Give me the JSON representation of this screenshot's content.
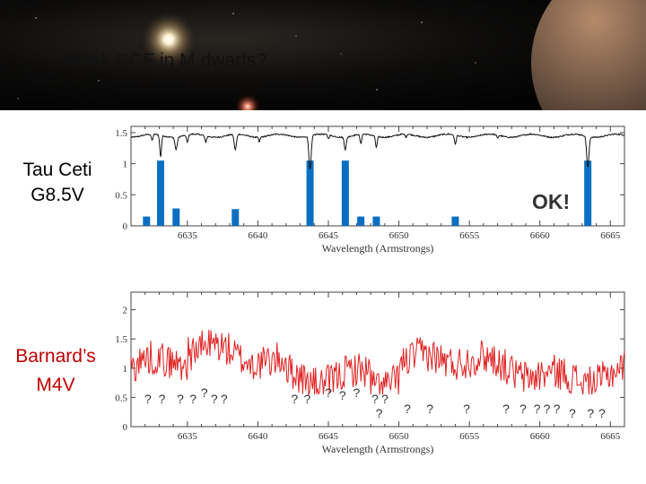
{
  "slide": {
    "title": "Mask CCF in M dwarfs?"
  },
  "tau_ceti": {
    "name": "Tau Ceti",
    "spectral_type": "G8.5V",
    "verdict": "OK!"
  },
  "barnards": {
    "name": "Barnard’s",
    "spectral_type": "M4V"
  },
  "colors": {
    "mask_bars": "#0a6fc2",
    "spectrum_m_dwarf": "#e02020",
    "spectrum_g_dwarf": "#111111"
  },
  "chart_data": [
    {
      "type": "line",
      "title": "",
      "xlabel": "Wavelength (Armstrongs)",
      "ylabel": "",
      "xlim": [
        6631,
        6666
      ],
      "ylim": [
        0,
        1.6
      ],
      "x_ticks": [
        6635,
        6640,
        6645,
        6650,
        6655,
        6660,
        6665
      ],
      "y_ticks": [
        "0",
        "0.5",
        "1",
        "1.5"
      ],
      "mask_lines": [
        {
          "x": 6632.1,
          "weight": 0.15
        },
        {
          "x": 6633.1,
          "weight": 1.05
        },
        {
          "x": 6634.2,
          "weight": 0.28
        },
        {
          "x": 6638.4,
          "weight": 0.27
        },
        {
          "x": 6643.7,
          "weight": 1.05
        },
        {
          "x": 6646.2,
          "weight": 1.05
        },
        {
          "x": 6647.3,
          "weight": 0.15
        },
        {
          "x": 6648.4,
          "weight": 0.15
        },
        {
          "x": 6654.0,
          "weight": 0.15
        },
        {
          "x": 6663.4,
          "weight": 1.05
        }
      ]
    },
    {
      "type": "line",
      "title": "",
      "xlabel": "Wavelength (Armstrongs)",
      "ylabel": "",
      "xlim": [
        6631,
        6666
      ],
      "ylim": [
        0,
        2.3
      ],
      "x_ticks": [
        6635,
        6640,
        6645,
        6650,
        6655,
        6660,
        6665
      ],
      "y_ticks": [
        "0",
        "0.5",
        "1",
        "1.5",
        "2"
      ],
      "unmatched_mask_lines": [
        {
          "x": 6632.2,
          "label": "?"
        },
        {
          "x": 6633.2,
          "label": "?"
        },
        {
          "x": 6634.5,
          "label": "?"
        },
        {
          "x": 6635.4,
          "label": "?"
        },
        {
          "x": 6636.2,
          "label": "?"
        },
        {
          "x": 6636.9,
          "label": "?"
        },
        {
          "x": 6637.6,
          "label": "?"
        },
        {
          "x": 6642.6,
          "label": "?"
        },
        {
          "x": 6643.5,
          "label": "?"
        },
        {
          "x": 6645.0,
          "label": "?"
        },
        {
          "x": 6646.0,
          "label": "?"
        },
        {
          "x": 6647.0,
          "label": "?"
        },
        {
          "x": 6648.3,
          "label": "?"
        },
        {
          "x": 6649.0,
          "label": "?"
        },
        {
          "x": 6648.6,
          "label": "?"
        },
        {
          "x": 6650.6,
          "label": "?"
        },
        {
          "x": 6652.2,
          "label": "?"
        },
        {
          "x": 6654.8,
          "label": "?"
        },
        {
          "x": 6657.6,
          "label": "?"
        },
        {
          "x": 6658.8,
          "label": "?"
        },
        {
          "x": 6659.8,
          "label": "?"
        },
        {
          "x": 6660.5,
          "label": "?"
        },
        {
          "x": 6661.2,
          "label": "?"
        },
        {
          "x": 6662.3,
          "label": "?"
        },
        {
          "x": 6663.6,
          "label": "?"
        },
        {
          "x": 6664.4,
          "label": "?"
        }
      ]
    }
  ]
}
